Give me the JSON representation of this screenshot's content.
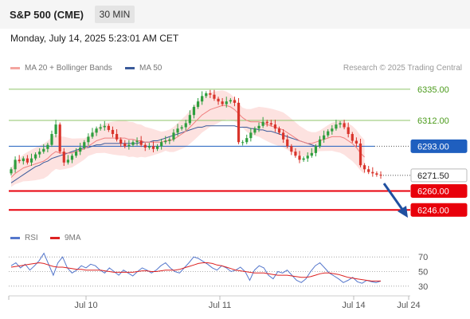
{
  "header": {
    "title": "S&P 500 (CME)",
    "timeframe": "30 MIN",
    "timestamp": "Monday, July 14, 2025 5:23:01 AM CET"
  },
  "legend": {
    "ma20_label": "MA 20 + Bollinger Bands",
    "ma50_label": "MA 50",
    "credit": "Research © 2025 Trading Central",
    "rsi_label": "RSI",
    "ma9_label": "9MA"
  },
  "colors": {
    "up": "#2e9e3e",
    "down": "#d9342b",
    "bollinger": "#fcd8d6",
    "ma20": "#f08080",
    "ma50": "#3a5a9a",
    "level_green": "#8fc46a",
    "level_blue": "#1f5fbf",
    "level_red": "#e8000b",
    "rsi": "#5577cc",
    "rsi_ma": "#dd2222"
  },
  "chart_data": [
    {
      "type": "candlestick",
      "x_ticks": [
        "Jul 10",
        "Jul 11",
        "Jul 14",
        "Jul 24"
      ],
      "ylim": [
        6235,
        6342
      ],
      "levels": [
        {
          "value": 6335.0,
          "label": "6335.00",
          "kind": "resistance"
        },
        {
          "value": 6312.0,
          "label": "6312.00",
          "kind": "resistance"
        },
        {
          "value": 6293.0,
          "label": "6293.00",
          "kind": "pivot"
        },
        {
          "value": 6271.5,
          "label": "6271.50",
          "kind": "last"
        },
        {
          "value": 6260.0,
          "label": "6260.00",
          "kind": "support"
        },
        {
          "value": 6246.0,
          "label": "6246.00",
          "kind": "support"
        }
      ],
      "close": [
        6276,
        6283,
        6282,
        6284,
        6281,
        6284,
        6287,
        6289,
        6291,
        6294,
        6302,
        6309,
        6289,
        6281,
        6283,
        6286,
        6289,
        6292,
        6296,
        6300,
        6303,
        6306,
        6307,
        6308,
        6305,
        6302,
        6298,
        6295,
        6293,
        6294,
        6296,
        6297,
        6294,
        6292,
        6293,
        6291,
        6293,
        6296,
        6297,
        6298,
        6303,
        6306,
        6307,
        6310,
        6316,
        6322,
        6326,
        6330,
        6332,
        6331,
        6328,
        6326,
        6324,
        6326,
        6327,
        6325,
        6296,
        6296,
        6299,
        6303,
        6306,
        6308,
        6311,
        6310,
        6309,
        6306,
        6303,
        6298,
        6293,
        6289,
        6286,
        6283,
        6284,
        6286,
        6288,
        6293,
        6298,
        6301,
        6304,
        6306,
        6309,
        6310,
        6307,
        6302,
        6297,
        6295,
        6279,
        6276,
        6274,
        6273,
        6272,
        6271.5
      ],
      "ma20": [
        6270,
        6273,
        6275,
        6277,
        6278,
        6279,
        6280,
        6281,
        6282,
        6284,
        6287,
        6289,
        6288,
        6288,
        6288,
        6288,
        6289,
        6290,
        6291,
        6293,
        6295,
        6297,
        6298,
        6299,
        6299,
        6299,
        6299,
        6299,
        6299,
        6298,
        6298,
        6297,
        6297,
        6296,
        6296,
        6296,
        6296,
        6296,
        6297,
        6297,
        6298,
        6300,
        6302,
        6304,
        6307,
        6310,
        6313,
        6316,
        6318,
        6320,
        6321,
        6322,
        6323,
        6323,
        6322,
        6320,
        6317,
        6314,
        6312,
        6311,
        6311,
        6311,
        6310,
        6309,
        6308,
        6307,
        6306,
        6305,
        6303,
        6301,
        6299,
        6297,
        6296,
        6295,
        6295,
        6296,
        6297,
        6298,
        6299,
        6300,
        6300,
        6300,
        6299,
        6297,
        6295,
        6292,
        6288,
        6285
      ],
      "ma50": [
        6266,
        6268,
        6270,
        6272,
        6274,
        6276,
        6278,
        6279,
        6281,
        6282,
        6284,
        6285,
        6286,
        6287,
        6288,
        6289,
        6290,
        6291,
        6292,
        6292,
        6293,
        6294,
        6294,
        6295,
        6295,
        6295,
        6295,
        6295,
        6295,
        6295,
        6295,
        6295,
        6296,
        6296,
        6296,
        6297,
        6297,
        6298,
        6299,
        6300,
        6301,
        6302,
        6303,
        6304,
        6305,
        6306,
        6307,
        6307,
        6308,
        6308,
        6308,
        6308,
        6308,
        6308,
        6308,
        6308,
        6307,
        6307,
        6307,
        6306,
        6306,
        6305,
        6305,
        6304,
        6304,
        6303,
        6302,
        6301,
        6300,
        6299,
        6298,
        6297,
        6296,
        6295,
        6294,
        6293,
        6293
      ]
    },
    {
      "type": "line",
      "ylim": [
        20,
        80
      ],
      "y_ticks": [
        70,
        50,
        30
      ],
      "rsi": [
        58,
        62,
        55,
        60,
        52,
        58,
        65,
        75,
        60,
        45,
        62,
        70,
        55,
        48,
        52,
        58,
        55,
        60,
        58,
        52,
        48,
        55,
        50,
        45,
        52,
        48,
        44,
        50,
        55,
        52,
        48,
        52,
        58,
        62,
        55,
        50,
        48,
        55,
        62,
        70,
        68,
        64,
        60,
        55,
        52,
        58,
        55,
        50,
        52,
        56,
        50,
        38,
        52,
        58,
        55,
        45,
        40,
        50,
        48,
        52,
        45,
        38,
        35,
        40,
        50,
        58,
        62,
        55,
        48,
        44,
        40,
        35,
        38,
        42,
        36,
        34,
        38,
        36,
        35,
        37
      ],
      "rsi_ma": [
        56,
        57,
        58,
        59,
        60,
        61,
        62,
        61,
        59,
        57,
        56,
        56,
        55,
        54,
        53,
        53,
        52,
        52,
        52,
        52,
        51,
        50,
        49,
        49,
        49,
        49,
        49,
        50,
        51,
        51,
        50,
        50,
        51,
        52,
        52,
        52,
        53,
        55,
        57,
        59,
        61,
        62,
        62,
        61,
        59,
        58,
        56,
        54,
        52,
        51,
        50,
        49,
        48,
        48,
        48,
        47,
        46,
        45,
        45,
        45,
        44,
        43,
        42,
        42,
        43,
        45,
        47,
        48,
        48,
        47,
        46,
        44,
        42,
        41,
        40,
        39,
        38,
        37,
        37,
        37
      ]
    }
  ]
}
